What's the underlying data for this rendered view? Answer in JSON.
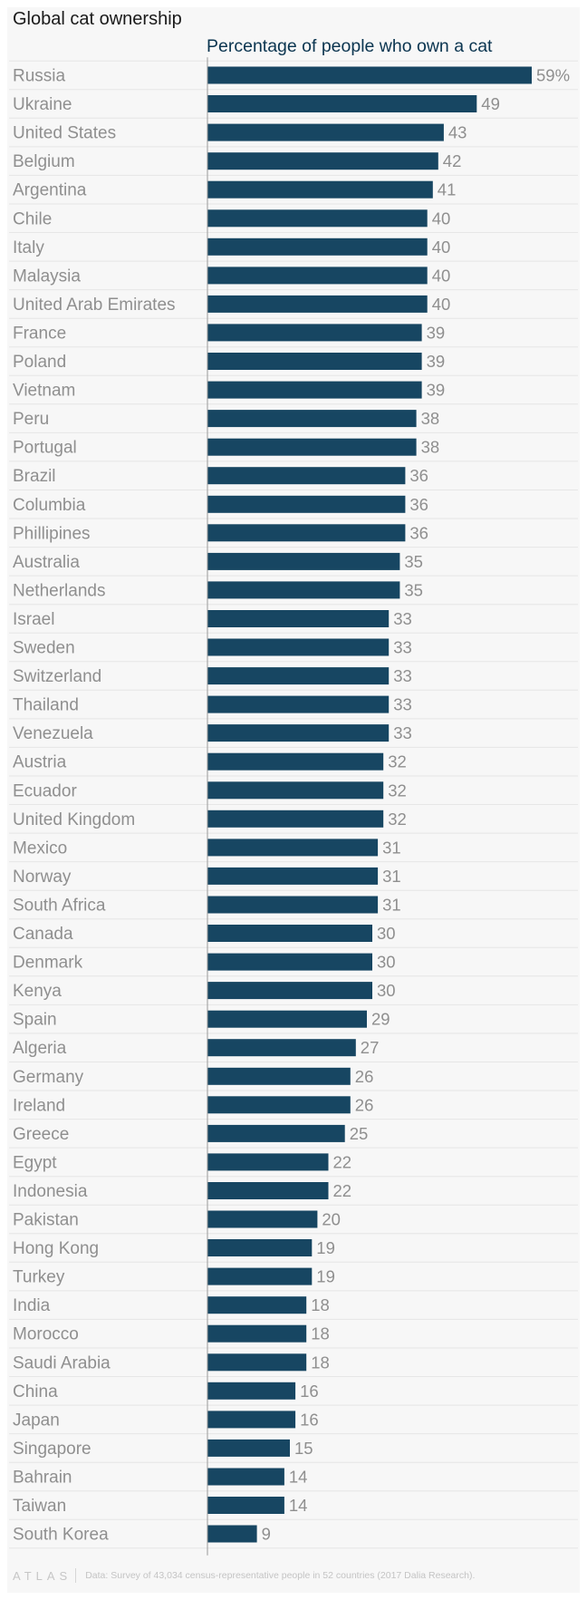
{
  "chart_data": {
    "type": "bar",
    "orientation": "horizontal",
    "title": "Global cat ownership",
    "subtitle": "Percentage of people who own a cat",
    "value_suffix_first": "%",
    "categories": [
      "Russia",
      "Ukraine",
      "United States",
      "Belgium",
      "Argentina",
      "Chile",
      "Italy",
      "Malaysia",
      "United Arab Emirates",
      "France",
      "Poland",
      "Vietnam",
      "Peru",
      "Portugal",
      "Brazil",
      "Columbia",
      "Phillipines",
      "Australia",
      "Netherlands",
      "Israel",
      "Sweden",
      "Switzerland",
      "Thailand",
      "Venezuela",
      "Austria",
      "Ecuador",
      "United Kingdom",
      "Mexico",
      "Norway",
      "South Africa",
      "Canada",
      "Denmark",
      "Kenya",
      "Spain",
      "Algeria",
      "Germany",
      "Ireland",
      "Greece",
      "Egypt",
      "Indonesia",
      "Pakistan",
      "Hong Kong",
      "Turkey",
      "India",
      "Morocco",
      "Saudi Arabia",
      "China",
      "Japan",
      "Singapore",
      "Bahrain",
      "Taiwan",
      "South Korea"
    ],
    "values": [
      59,
      49,
      43,
      42,
      41,
      40,
      40,
      40,
      40,
      39,
      39,
      39,
      38,
      38,
      36,
      36,
      36,
      35,
      35,
      33,
      33,
      33,
      33,
      33,
      32,
      32,
      32,
      31,
      31,
      31,
      30,
      30,
      30,
      29,
      27,
      26,
      26,
      25,
      22,
      22,
      20,
      19,
      19,
      18,
      18,
      18,
      16,
      16,
      15,
      14,
      14,
      9
    ],
    "xlim": [
      0,
      59
    ],
    "grid": true,
    "colors": {
      "bar": "#174662",
      "category_label": "#8f8f8f",
      "value_label": "#8f8f8f",
      "gridline": "#e6e6e6",
      "baseline": "#9a9a9a"
    }
  },
  "footer": {
    "logo": "ATLAS",
    "source": "Data: Survey of 43,034 census-representative people in 52 countries (2017 Dalia Research)."
  }
}
